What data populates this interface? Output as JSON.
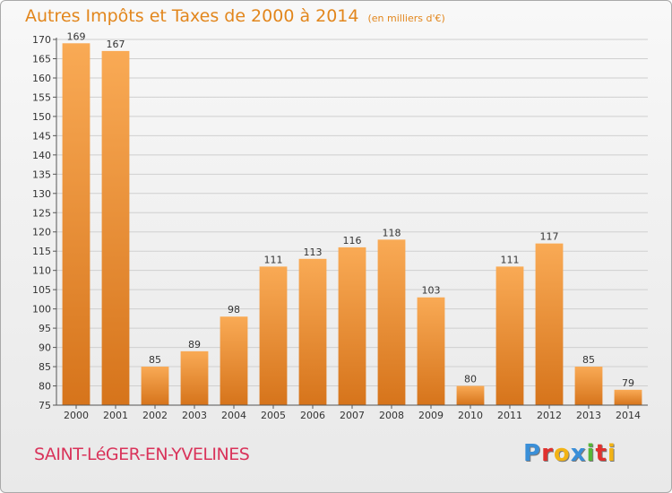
{
  "header": {
    "title": "Autres Impôts et Taxes de 2000 à 2014",
    "subtitle": "(en milliers d'€)"
  },
  "footer": {
    "commune": "SAINT-LéGER-EN-YVELINES",
    "logo_text": "Proxiti",
    "logo_colors": [
      "#3a8fd8",
      "#e0312e",
      "#f2b315",
      "#3a8fd8",
      "#56b637",
      "#e0312e",
      "#f2b315"
    ]
  },
  "colors": {
    "bar_light": "#f9aa55",
    "bar_dark": "#d6741b",
    "grid": "#cfcfcf",
    "axis": "#555555",
    "text": "#333333"
  },
  "chart_data": {
    "type": "bar",
    "title": "Autres Impôts et Taxes de 2000 à 2014",
    "subtitle": "(en milliers d'€)",
    "categories": [
      "2000",
      "2001",
      "2002",
      "2003",
      "2004",
      "2005",
      "2006",
      "2007",
      "2008",
      "2009",
      "2010",
      "2011",
      "2012",
      "2013",
      "2014"
    ],
    "values": [
      169,
      167,
      85,
      89,
      98,
      111,
      113,
      116,
      118,
      103,
      80,
      111,
      117,
      85,
      79
    ],
    "xlabel": "",
    "ylabel": "",
    "ylim": [
      75,
      170
    ],
    "ytick_step": 5,
    "grid": true,
    "data_labels": true
  }
}
